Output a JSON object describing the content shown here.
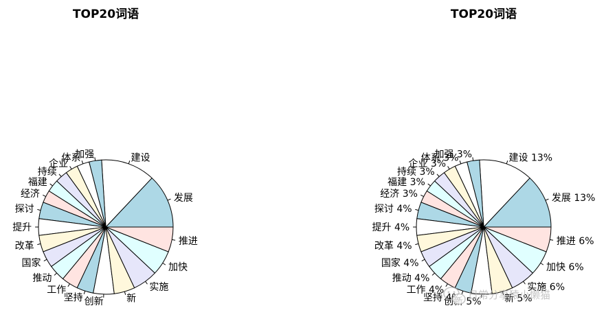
{
  "chart_data": [
    {
      "type": "pie",
      "title": "TOP20词语",
      "show_percent": false,
      "categories": [
        "发展",
        "建设",
        "加强",
        "体系",
        "企业",
        "持续",
        "福建",
        "经济",
        "探讨",
        "提升",
        "改革",
        "国家",
        "推动",
        "工作",
        "坚持",
        "创新",
        "新",
        "实施",
        "加快",
        "推进"
      ],
      "values": [
        13,
        13,
        3,
        3,
        3,
        3,
        3,
        3,
        4,
        4,
        4,
        4,
        4,
        4,
        4,
        5,
        5,
        6,
        6,
        6
      ],
      "colors": [
        "#add8e6",
        "#ffffff",
        "#add8e6",
        "#ffffff",
        "#fff8dc",
        "#e6e6fa",
        "#e0ffff",
        "#ffe4e1",
        "#add8e6",
        "#ffffff",
        "#fff8dc",
        "#e6e6fa",
        "#e0ffff",
        "#ffe4e1",
        "#add8e6",
        "#ffffff",
        "#fff8dc",
        "#e6e6fa",
        "#e0ffff",
        "#ffe4e1"
      ]
    },
    {
      "type": "pie",
      "title": "TOP20词语",
      "show_percent": true,
      "categories": [
        "发展",
        "建设",
        "加强",
        "体系",
        "企业",
        "持续",
        "福建",
        "经济",
        "探讨",
        "提升",
        "改革",
        "国家",
        "推动",
        "工作",
        "坚持",
        "创新",
        "新",
        "实施",
        "加快",
        "推进"
      ],
      "values": [
        13,
        13,
        3,
        3,
        3,
        3,
        3,
        3,
        4,
        4,
        4,
        4,
        4,
        4,
        4,
        5,
        5,
        6,
        6,
        6
      ],
      "colors": [
        "#add8e6",
        "#ffffff",
        "#add8e6",
        "#ffffff",
        "#fff8dc",
        "#e6e6fa",
        "#e0ffff",
        "#ffe4e1",
        "#add8e6",
        "#ffffff",
        "#fff8dc",
        "#e6e6fa",
        "#e0ffff",
        "#ffe4e1",
        "#add8e6",
        "#ffffff",
        "#fff8dc",
        "#e6e6fa",
        "#e0ffff",
        "#ffe4e1"
      ]
    }
  ],
  "watermark": {
    "text": "日常分享猿小懒猫",
    "icon": "wechat-icon"
  }
}
